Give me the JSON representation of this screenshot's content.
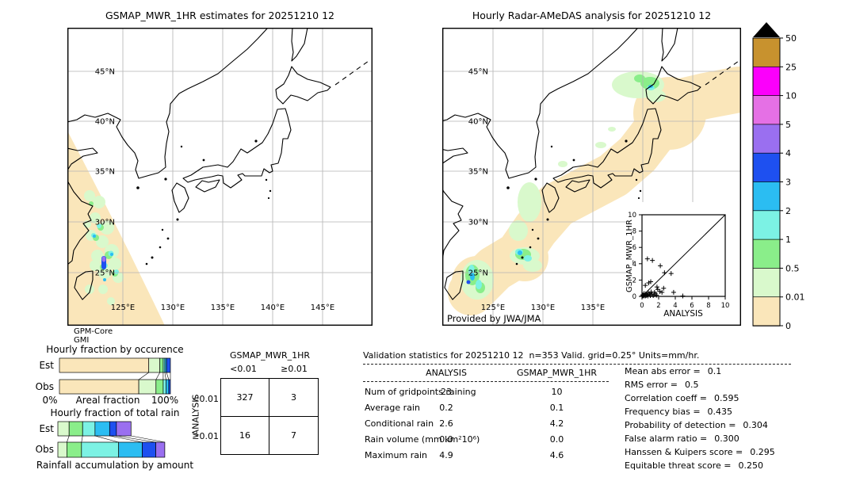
{
  "left_map": {
    "title": "GSMAP_MWR_1HR estimates for 20251210 12",
    "lat_labels": [
      "45°N",
      "40°N",
      "35°N",
      "30°N",
      "25°N"
    ],
    "lon_labels": [
      "125°E",
      "130°E",
      "135°E",
      "140°E",
      "145°E"
    ],
    "source_lines": [
      "GPM-Core",
      "GMI"
    ]
  },
  "right_map": {
    "title": "Hourly Radar-AMeDAS analysis for 20251210 12",
    "lat_labels": [
      "45°N",
      "40°N",
      "35°N",
      "30°N",
      "25°N"
    ],
    "lon_labels": [
      "125°E",
      "130°E",
      "135°E"
    ],
    "credit": "Provided by JWA/JMA"
  },
  "colorbar": {
    "tick_labels": [
      "50",
      "25",
      "10",
      "5",
      "4",
      "3",
      "2",
      "1",
      "0.5",
      "0.01",
      "0"
    ]
  },
  "inset": {
    "xlabel": "ANALYSIS",
    "ylabel": "GSMAP_MWR_1HR"
  },
  "occurrence": {
    "title": "Hourly fraction by occurence",
    "row_labels": [
      "Est",
      "Obs"
    ],
    "axis_left": "0%",
    "axis_center": "Areal fraction",
    "axis_right": "100%"
  },
  "totalrain": {
    "title": "Hourly fraction of total rain",
    "row_labels": [
      "Est",
      "Obs"
    ],
    "xlabel": "Rainfall accumulation by amount"
  },
  "contingency": {
    "col_group": "GSMAP_MWR_1HR",
    "row_group": "ANALYSIS",
    "col_labels": [
      "<0.01",
      "≥0.01"
    ],
    "row_labels": [
      "<0.01",
      "≥0.01"
    ],
    "cells": [
      [
        "327",
        "3"
      ],
      [
        "16",
        "7"
      ]
    ]
  },
  "stats": {
    "header": "Validation statistics for 20251210 12  n=353 Valid. grid=0.25° Units=mm/hr.",
    "col_headers": [
      "ANALYSIS",
      "GSMAP_MWR_1HR"
    ],
    "rows": [
      {
        "label": "Num of gridpoints raining",
        "analysis": "23",
        "gsmap": "10"
      },
      {
        "label": "Average rain",
        "analysis": "0.2",
        "gsmap": "0.1"
      },
      {
        "label": "Conditional rain",
        "analysis": "2.6",
        "gsmap": "4.2"
      },
      {
        "label": "Rain volume (mm km²10⁶)",
        "analysis": "0.0",
        "gsmap": "0.0"
      },
      {
        "label": "Maximum rain",
        "analysis": "4.9",
        "gsmap": "4.6"
      }
    ],
    "metrics": [
      {
        "label": "Mean abs error =",
        "value": "0.1"
      },
      {
        "label": "RMS error =",
        "value": "0.5"
      },
      {
        "label": "Correlation coeff =",
        "value": "0.595"
      },
      {
        "label": "Frequency bias =",
        "value": "0.435"
      },
      {
        "label": "Probability of detection =",
        "value": "0.304"
      },
      {
        "label": "False alarm ratio =",
        "value": "0.300"
      },
      {
        "label": "Hanssen & Kuipers score =",
        "value": "0.295"
      },
      {
        "label": "Equitable threat score =",
        "value": "0.250"
      }
    ]
  },
  "palette": {
    "tan": "#fae6ba",
    "pale_green": "#d9f9cc",
    "green": "#8aee8a",
    "light_cyan": "#7cf2e4",
    "cyan": "#2bbdf2",
    "blue": "#1e50f0",
    "purple": "#9a6ff0",
    "violet": "#e570e5",
    "magenta": "#fb00fb",
    "dark_tan": "#c8922e"
  },
  "chart_data": [
    {
      "type": "scatter",
      "name": "inset_validation_scatter",
      "xlabel": "ANALYSIS",
      "ylabel": "GSMAP_MWR_1HR",
      "xlim": [
        0,
        10
      ],
      "ylim": [
        0,
        10
      ],
      "ticks": [
        0,
        2,
        4,
        6,
        8,
        10
      ],
      "diagonal": true,
      "points": [
        [
          0.05,
          0.05
        ],
        [
          0.1,
          0.2
        ],
        [
          0.15,
          0.1
        ],
        [
          0.2,
          0.05
        ],
        [
          0.25,
          0.35
        ],
        [
          0.3,
          0.15
        ],
        [
          0.4,
          0.05
        ],
        [
          0.45,
          0.3
        ],
        [
          0.5,
          0.1
        ],
        [
          0.6,
          0.2
        ],
        [
          0.7,
          0.05
        ],
        [
          0.75,
          0.45
        ],
        [
          0.9,
          0.3
        ],
        [
          1.0,
          0.1
        ],
        [
          1.1,
          0.55
        ],
        [
          1.2,
          0.25
        ],
        [
          1.35,
          0.1
        ],
        [
          1.5,
          0.5
        ],
        [
          1.6,
          0.3
        ],
        [
          1.75,
          0.15
        ],
        [
          0.4,
          1.35
        ],
        [
          0.8,
          1.65
        ],
        [
          1.05,
          1.8
        ],
        [
          1.8,
          1.15
        ],
        [
          1.9,
          0.85
        ],
        [
          2.15,
          0.6
        ],
        [
          2.4,
          0.5
        ],
        [
          2.6,
          1.0
        ],
        [
          3.8,
          0.5
        ],
        [
          4.9,
          0.05
        ],
        [
          0.65,
          4.6
        ],
        [
          1.25,
          4.4
        ],
        [
          2.2,
          3.75
        ],
        [
          2.7,
          2.9
        ],
        [
          3.5,
          2.8
        ]
      ]
    },
    {
      "type": "bar",
      "name": "hourly_fraction_by_occurence",
      "title": "Hourly fraction by occurence",
      "orientation": "horizontal-stacked",
      "categories": [
        "Est",
        "Obs"
      ],
      "xlabel": "Areal fraction",
      "xlim": [
        0,
        100
      ],
      "series": [
        {
          "name": "Est",
          "segments": [
            {
              "color": "tan",
              "value": 80.5
            },
            {
              "color": "pale_green",
              "value": 10
            },
            {
              "color": "green",
              "value": 3
            },
            {
              "color": "light_cyan",
              "value": 1.5
            },
            {
              "color": "cyan",
              "value": 1.5
            },
            {
              "color": "blue",
              "value": 3.5
            }
          ]
        },
        {
          "name": "Obs",
          "segments": [
            {
              "color": "tan",
              "value": 71.5
            },
            {
              "color": "pale_green",
              "value": 15.5
            },
            {
              "color": "green",
              "value": 6.5
            },
            {
              "color": "light_cyan",
              "value": 2.5
            },
            {
              "color": "cyan",
              "value": 2.5
            },
            {
              "color": "blue",
              "value": 1.5
            }
          ]
        }
      ]
    },
    {
      "type": "bar",
      "name": "hourly_fraction_of_total_rain",
      "title": "Hourly fraction of total rain",
      "orientation": "horizontal-stacked",
      "categories": [
        "Est",
        "Obs"
      ],
      "xlabel": "Rainfall accumulation by amount",
      "xlim": [
        0,
        100
      ],
      "series": [
        {
          "name": "Est",
          "segments": [
            {
              "color": "pale_green",
              "value": 10
            },
            {
              "color": "green",
              "value": 12
            },
            {
              "color": "light_cyan",
              "value": 11
            },
            {
              "color": "cyan",
              "value": 13
            },
            {
              "color": "blue",
              "value": 6
            },
            {
              "color": "purple",
              "value": 13
            }
          ]
        },
        {
          "name": "Obs",
          "segments": [
            {
              "color": "pale_green",
              "value": 8
            },
            {
              "color": "green",
              "value": 13
            },
            {
              "color": "light_cyan",
              "value": 33
            },
            {
              "color": "cyan",
              "value": 21
            },
            {
              "color": "blue",
              "value": 12
            },
            {
              "color": "purple",
              "value": 8
            }
          ]
        }
      ]
    },
    {
      "type": "table",
      "name": "contingency_table",
      "col_group": "GSMAP_MWR_1HR",
      "row_group": "ANALYSIS",
      "col_labels": [
        "<0.01",
        "≥0.01"
      ],
      "row_labels": [
        "<0.01",
        "≥0.01"
      ],
      "values": [
        [
          327,
          3
        ],
        [
          16,
          7
        ]
      ]
    },
    {
      "type": "table",
      "name": "validation_statistics",
      "columns": [
        "",
        "ANALYSIS",
        "GSMAP_MWR_1HR"
      ],
      "rows": [
        [
          "Num of gridpoints raining",
          23,
          10
        ],
        [
          "Average rain",
          0.2,
          0.1
        ],
        [
          "Conditional rain",
          2.6,
          4.2
        ],
        [
          "Rain volume (mm km²10⁶)",
          0.0,
          0.0
        ],
        [
          "Maximum rain",
          4.9,
          4.6
        ]
      ]
    },
    {
      "type": "table",
      "name": "validation_metrics",
      "rows": [
        [
          "Mean abs error",
          0.1
        ],
        [
          "RMS error",
          0.5
        ],
        [
          "Correlation coeff",
          0.595
        ],
        [
          "Frequency bias",
          0.435
        ],
        [
          "Probability of detection",
          0.304
        ],
        [
          "False alarm ratio",
          0.3
        ],
        [
          "Hanssen & Kuipers score",
          0.295
        ],
        [
          "Equitable threat score",
          0.25
        ]
      ]
    },
    {
      "type": "heatmap",
      "name": "colorbar_scale_mm_per_hr",
      "levels": [
        0,
        0.01,
        0.5,
        1,
        2,
        3,
        4,
        5,
        10,
        25,
        50
      ],
      "colors": [
        "#fae6ba",
        "#d9f9cc",
        "#8aee8a",
        "#7cf2e4",
        "#2bbdf2",
        "#1e50f0",
        "#9a6ff0",
        "#e570e5",
        "#fb00fb",
        "#c8922e"
      ],
      "over_color": "#000000"
    }
  ]
}
